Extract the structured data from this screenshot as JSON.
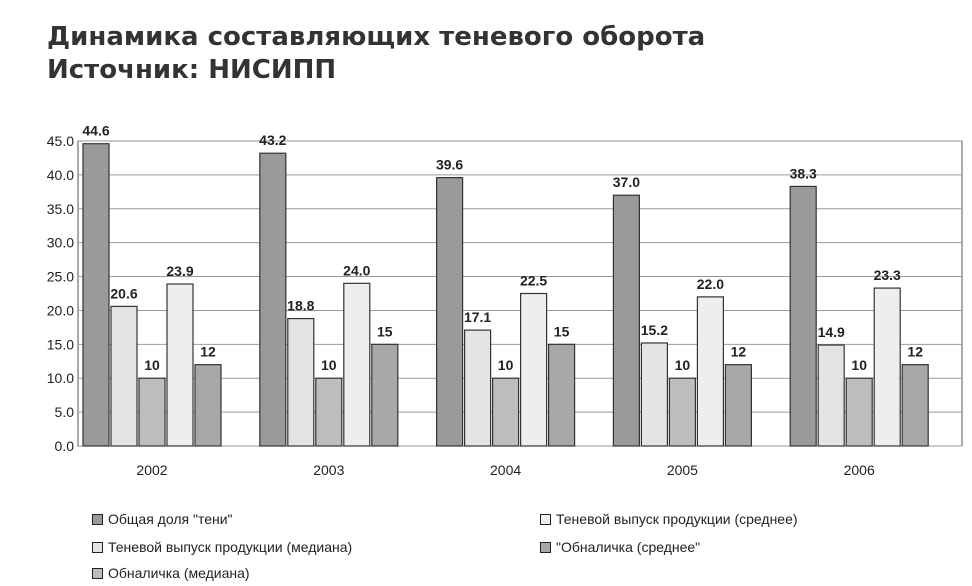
{
  "title_line1": "Динамика составляющих теневого оборота",
  "title_line2": "Источник: НИСИПП",
  "chart_data": {
    "type": "bar",
    "categories": [
      "2002",
      "2003",
      "2004",
      "2005",
      "2006"
    ],
    "ylim": [
      0,
      45
    ],
    "yticks": [
      "0.0",
      "5.0",
      "10.0",
      "15.0",
      "20.0",
      "25.0",
      "30.0",
      "35.0",
      "40.0",
      "45.0"
    ],
    "grid": true,
    "legend_position": "bottom",
    "series": [
      {
        "name": "Общая доля \"тени\"",
        "values": [
          44.6,
          43.2,
          39.6,
          37.0,
          38.3
        ],
        "labels": [
          "44.6",
          "43.2",
          "39.6",
          "37.0",
          "38.3"
        ],
        "color": "#9a9a9a"
      },
      {
        "name": "Теневой выпуск продукции (медиана)",
        "values": [
          20.6,
          18.8,
          17.1,
          15.2,
          14.9
        ],
        "labels": [
          "20.6",
          "18.8",
          "17.1",
          "15.2",
          "14.9"
        ],
        "color": "#e4e4e4"
      },
      {
        "name": "Обналичка (медиана)",
        "values": [
          10,
          10,
          10,
          10,
          10
        ],
        "labels": [
          "10",
          "10",
          "10",
          "10",
          "10"
        ],
        "color": "#bdbdbd"
      },
      {
        "name": "Теневой выпуск продукции (среднее)",
        "values": [
          23.9,
          24.0,
          22.5,
          22.0,
          23.3
        ],
        "labels": [
          "23.9",
          "24.0",
          "22.5",
          "22.0",
          "23.3"
        ],
        "color": "#eeeeee"
      },
      {
        "name": "\"Обналичка (среднее\"",
        "values": [
          12,
          15,
          15,
          12,
          12
        ],
        "labels": [
          "12",
          "15",
          "15",
          "12",
          "12"
        ],
        "color": "#a8a8a8"
      }
    ]
  },
  "legend": [
    {
      "label": "Общая доля \"тени\"",
      "color": "#9a9a9a"
    },
    {
      "label": "Теневой выпуск продукции (среднее)",
      "color": "#eeeeee"
    },
    {
      "label": "Теневой выпуск продукции (медиана)",
      "color": "#e4e4e4"
    },
    {
      "label": "\"Обналичка (среднее\"",
      "color": "#a8a8a8"
    },
    {
      "label": "Обналичка (медиана)",
      "color": "#bdbdbd"
    }
  ]
}
